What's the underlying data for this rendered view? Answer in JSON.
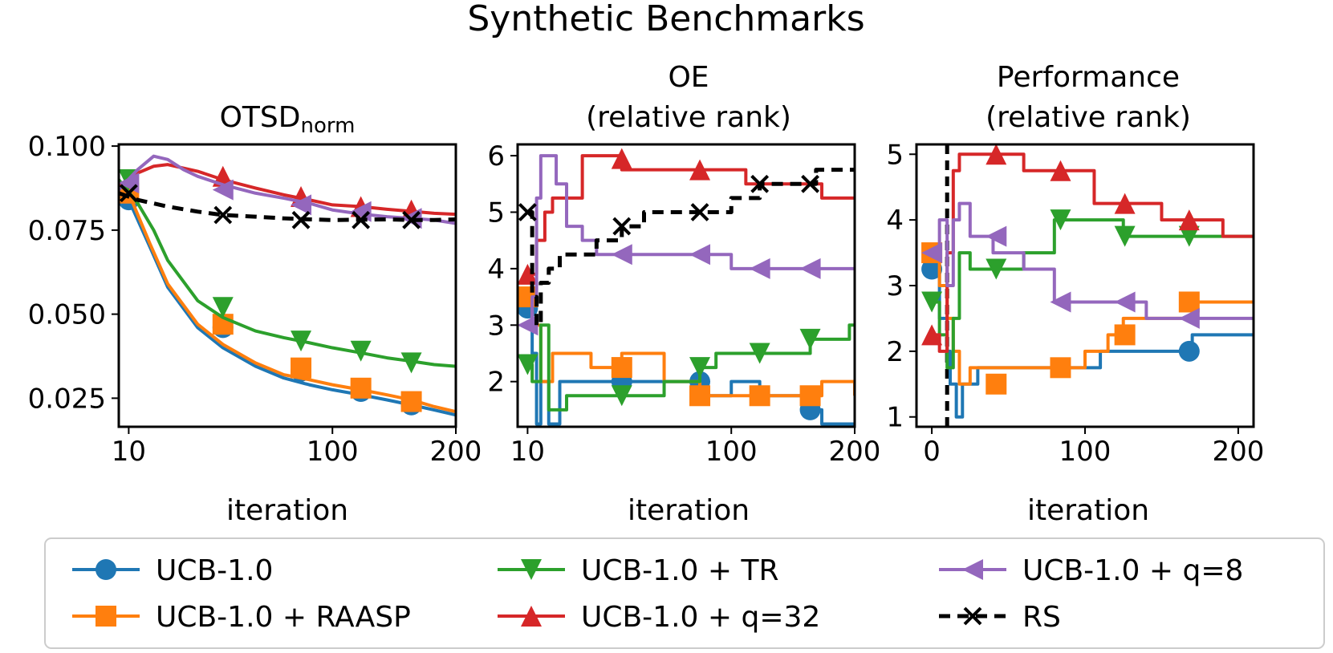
{
  "figure_title": "Synthetic Benchmarks",
  "colors": {
    "blue": "#1f77b4",
    "orange": "#ff7f0e",
    "green": "#2ca02c",
    "red": "#d62728",
    "purple": "#9467bd",
    "black": "#000000"
  },
  "legend": [
    {
      "label": "UCB-1.0",
      "color": "#1f77b4",
      "marker": "circle",
      "dash": false
    },
    {
      "label": "UCB-1.0 + RAASP",
      "color": "#ff7f0e",
      "marker": "square",
      "dash": false
    },
    {
      "label": "UCB-1.0 + TR",
      "color": "#2ca02c",
      "marker": "triangle-down",
      "dash": false
    },
    {
      "label": "UCB-1.0 + q=32",
      "color": "#d62728",
      "marker": "triangle-up",
      "dash": false
    },
    {
      "label": "UCB-1.0 + q=8",
      "color": "#9467bd",
      "marker": "triangle-left",
      "dash": false
    },
    {
      "label": "RS",
      "color": "#000000",
      "marker": "x",
      "dash": true
    }
  ],
  "chart_data": [
    {
      "type": "line",
      "title": "OTSD",
      "title_sub": "norm",
      "xlabel": "iteration",
      "ylabel": "",
      "xscale": "sqrt",
      "xlim": [
        8,
        200
      ],
      "ylim": [
        0.0165,
        0.1005
      ],
      "xticks": [
        10,
        100,
        200
      ],
      "xtick_labels": [
        "10",
        "100",
        "200"
      ],
      "yticks": [
        0.025,
        0.05,
        0.075,
        0.1
      ],
      "ytick_labels": [
        "0.025",
        "0.050",
        "0.075",
        "0.100"
      ],
      "step": false,
      "series": [
        {
          "name": "UCB-1.0",
          "color": "#1f77b4",
          "marker": "circle",
          "x": [
            10,
            15,
            20,
            30,
            40,
            55,
            70,
            85,
            100,
            120,
            140,
            160,
            180,
            200
          ],
          "y": [
            0.084,
            0.07,
            0.058,
            0.046,
            0.04,
            0.0345,
            0.031,
            0.029,
            0.0275,
            0.026,
            0.0245,
            0.023,
            0.0215,
            0.02
          ],
          "markers_x": [
            10,
            40,
            80,
            120,
            160
          ],
          "markers_y": [
            0.084,
            0.046,
            0.033,
            0.027,
            0.023
          ]
        },
        {
          "name": "UCB-1.0 + RAASP",
          "color": "#ff7f0e",
          "marker": "square",
          "x": [
            10,
            15,
            20,
            30,
            40,
            55,
            70,
            85,
            100,
            120,
            140,
            160,
            180,
            200
          ],
          "y": [
            0.086,
            0.071,
            0.059,
            0.047,
            0.041,
            0.0355,
            0.032,
            0.0305,
            0.029,
            0.0275,
            0.026,
            0.0245,
            0.0225,
            0.021
          ],
          "markers_x": [
            10,
            40,
            80,
            120,
            160
          ],
          "markers_y": [
            0.086,
            0.047,
            0.034,
            0.028,
            0.024
          ]
        },
        {
          "name": "UCB-1.0 + TR",
          "color": "#2ca02c",
          "marker": "triangle-down",
          "x": [
            8,
            12,
            16,
            20,
            30,
            40,
            55,
            70,
            85,
            100,
            120,
            140,
            160,
            180,
            200
          ],
          "y": [
            0.09,
            0.083,
            0.075,
            0.066,
            0.054,
            0.049,
            0.045,
            0.043,
            0.0415,
            0.04,
            0.0385,
            0.037,
            0.036,
            0.035,
            0.0345
          ],
          "markers_x": [
            10,
            40,
            80,
            120,
            160
          ],
          "markers_y": [
            0.09,
            0.052,
            0.042,
            0.039,
            0.0355
          ]
        },
        {
          "name": "UCB-1.0 + q=32",
          "color": "#d62728",
          "marker": "triangle-up",
          "x": [
            8,
            12,
            16,
            20,
            30,
            40,
            55,
            70,
            85,
            100,
            120,
            140,
            160,
            180,
            200
          ],
          "y": [
            0.088,
            0.092,
            0.094,
            0.0945,
            0.0925,
            0.09,
            0.0875,
            0.0855,
            0.084,
            0.0825,
            0.082,
            0.0812,
            0.0806,
            0.08,
            0.0797
          ],
          "markers_x": [
            40,
            80,
            120,
            160
          ],
          "markers_y": [
            0.091,
            0.085,
            0.082,
            0.081
          ]
        },
        {
          "name": "UCB-1.0 + q=8",
          "color": "#9467bd",
          "marker": "triangle-left",
          "x": [
            8,
            12,
            16,
            20,
            25,
            30,
            40,
            55,
            70,
            85,
            100,
            120,
            140,
            160,
            180,
            200
          ],
          "y": [
            0.087,
            0.093,
            0.097,
            0.096,
            0.093,
            0.091,
            0.0885,
            0.086,
            0.0845,
            0.083,
            0.081,
            0.0798,
            0.079,
            0.0785,
            0.078,
            0.077
          ],
          "markers_x": [
            10,
            40,
            80,
            120,
            160
          ],
          "markers_y": [
            0.089,
            0.087,
            0.0825,
            0.0805,
            0.0785
          ]
        },
        {
          "name": "RS",
          "color": "#000000",
          "marker": "x",
          "dash": true,
          "x": [
            8,
            12,
            20,
            30,
            40,
            55,
            70,
            85,
            100,
            120,
            140,
            160,
            180,
            200
          ],
          "y": [
            0.086,
            0.084,
            0.082,
            0.0805,
            0.0795,
            0.079,
            0.0785,
            0.0782,
            0.078,
            0.0781,
            0.0782,
            0.078,
            0.078,
            0.0782
          ],
          "markers_x": [
            10,
            40,
            80,
            120,
            160
          ],
          "markers_y": [
            0.086,
            0.0795,
            0.078,
            0.078,
            0.078
          ]
        }
      ]
    },
    {
      "type": "line",
      "title": "OE",
      "title_line2": "(relative rank)",
      "xlabel": "iteration",
      "ylabel": "",
      "xscale": "sqrt",
      "xlim": [
        8,
        200
      ],
      "ylim": [
        1.2,
        6.2
      ],
      "xticks": [
        10,
        100,
        200
      ],
      "xtick_labels": [
        "10",
        "100",
        "200"
      ],
      "yticks": [
        2,
        3,
        4,
        5,
        6
      ],
      "ytick_labels": [
        "2",
        "3",
        "4",
        "5",
        "6"
      ],
      "step": true,
      "series": [
        {
          "name": "UCB-1.0",
          "color": "#1f77b4",
          "marker": "circle",
          "x": [
            10,
            11,
            12,
            13,
            15,
            18,
            22,
            30,
            40,
            60,
            80,
            100,
            120,
            160,
            170,
            200
          ],
          "y": [
            3.3,
            2.5,
            1.25,
            2.0,
            1.25,
            2.0,
            2.0,
            2.0,
            2.0,
            2.0,
            1.75,
            2.0,
            1.75,
            1.5,
            1.25,
            1.25
          ],
          "markers_x": [
            10,
            40,
            80,
            160
          ],
          "markers_y": [
            3.3,
            2.0,
            2.0,
            1.5
          ]
        },
        {
          "name": "UCB-1.0 + RAASP",
          "color": "#ff7f0e",
          "marker": "square",
          "x": [
            10,
            11,
            13,
            16,
            20,
            28,
            40,
            60,
            80,
            100,
            120,
            160,
            170,
            200
          ],
          "y": [
            3.5,
            3.0,
            2.0,
            2.5,
            2.5,
            2.25,
            2.5,
            2.0,
            1.75,
            1.75,
            1.75,
            1.75,
            2.0,
            1.75
          ],
          "markers_x": [
            10,
            40,
            80,
            120,
            160
          ],
          "markers_y": [
            3.5,
            2.25,
            1.75,
            1.75,
            1.75
          ]
        },
        {
          "name": "UCB-1.0 + TR",
          "color": "#2ca02c",
          "marker": "triangle-down",
          "x": [
            10,
            11,
            13,
            15,
            20,
            28,
            40,
            60,
            80,
            90,
            110,
            120,
            160,
            195,
            200
          ],
          "y": [
            2.3,
            2.0,
            3.0,
            1.5,
            1.75,
            1.75,
            1.75,
            2.0,
            2.25,
            2.5,
            2.5,
            2.5,
            2.75,
            3.0,
            3.0
          ],
          "markers_x": [
            10,
            40,
            80,
            120,
            160
          ],
          "markers_y": [
            2.3,
            1.75,
            2.25,
            2.5,
            2.75
          ]
        },
        {
          "name": "UCB-1.0 + q=32",
          "color": "#d62728",
          "marker": "triangle-up",
          "x": [
            10,
            12,
            14,
            16,
            18,
            20,
            25,
            40,
            80,
            110,
            120,
            160,
            170,
            200
          ],
          "y": [
            3.9,
            4.5,
            5.0,
            5.25,
            5.25,
            5.25,
            6.0,
            5.75,
            5.75,
            5.5,
            5.5,
            5.5,
            5.25,
            5.25
          ],
          "markers_x": [
            10,
            40,
            80
          ],
          "markers_y": [
            3.9,
            5.95,
            5.75
          ]
        },
        {
          "name": "UCB-1.0 + q=8",
          "color": "#9467bd",
          "marker": "triangle-left",
          "x": [
            10,
            11,
            12,
            13,
            15,
            17,
            20,
            25,
            30,
            40,
            60,
            80,
            100,
            200
          ],
          "y": [
            3.0,
            3.5,
            5.25,
            6.0,
            6.0,
            5.5,
            4.75,
            4.5,
            4.25,
            4.25,
            4.25,
            4.25,
            4.0,
            4.0
          ],
          "markers_x": [
            10,
            40,
            80,
            120,
            160
          ],
          "markers_y": [
            3.0,
            4.25,
            4.25,
            4.0,
            4.0
          ]
        },
        {
          "name": "RS",
          "color": "#000000",
          "marker": "x",
          "dash": true,
          "x": [
            10,
            11,
            12,
            13,
            15,
            18,
            22,
            30,
            40,
            50,
            60,
            80,
            100,
            120,
            160,
            165,
            200
          ],
          "y": [
            5.0,
            3.5,
            3.0,
            3.75,
            4.0,
            4.25,
            4.25,
            4.5,
            4.75,
            5.0,
            5.0,
            5.0,
            5.25,
            5.5,
            5.5,
            5.75,
            5.75
          ],
          "markers_x": [
            10,
            40,
            80,
            120,
            160
          ],
          "markers_y": [
            5.0,
            4.75,
            5.0,
            5.5,
            5.5
          ]
        }
      ]
    },
    {
      "type": "line",
      "title": "Performance",
      "title_line2": "(relative rank)",
      "xlabel": "iteration",
      "ylabel": "",
      "xscale": "linear",
      "xlim": [
        -10,
        210
      ],
      "ylim": [
        0.85,
        5.15
      ],
      "xticks": [
        0,
        100,
        200
      ],
      "xtick_labels": [
        "0",
        "100",
        "200"
      ],
      "yticks": [
        1,
        2,
        3,
        4,
        5
      ],
      "ytick_labels": [
        "1",
        "2",
        "3",
        "4",
        "5"
      ],
      "vline_x": 10,
      "step": true,
      "series": [
        {
          "name": "UCB-1.0",
          "color": "#1f77b4",
          "marker": "circle",
          "x": [
            0,
            5,
            10,
            12,
            16,
            20,
            30,
            40,
            60,
            80,
            100,
            110,
            130,
            170,
            200,
            210
          ],
          "y": [
            3.25,
            2.5,
            2.0,
            1.5,
            1.0,
            1.5,
            1.75,
            1.75,
            1.75,
            1.75,
            1.75,
            2.0,
            2.0,
            2.25,
            2.25,
            2.25
          ],
          "markers_x": [
            0,
            168
          ],
          "markers_y": [
            3.25,
            2.0
          ]
        },
        {
          "name": "UCB-1.0 + RAASP",
          "color": "#ff7f0e",
          "marker": "square",
          "x": [
            0,
            5,
            10,
            14,
            18,
            25,
            40,
            60,
            80,
            100,
            115,
            125,
            130,
            170,
            200,
            210
          ],
          "y": [
            3.5,
            3.0,
            2.5,
            2.0,
            1.5,
            1.75,
            1.75,
            1.75,
            1.75,
            2.0,
            2.25,
            2.5,
            2.5,
            2.75,
            2.75,
            2.75
          ],
          "markers_x": [
            0,
            42,
            84,
            126,
            168
          ],
          "markers_y": [
            3.5,
            1.5,
            1.75,
            2.25,
            2.75
          ]
        },
        {
          "name": "UCB-1.0 + TR",
          "color": "#2ca02c",
          "marker": "triangle-down",
          "x": [
            0,
            5,
            10,
            14,
            18,
            25,
            40,
            60,
            80,
            100,
            115,
            125,
            170,
            200,
            210
          ],
          "y": [
            2.75,
            2.25,
            1.75,
            2.5,
            3.5,
            3.25,
            3.25,
            3.5,
            4.0,
            4.0,
            4.0,
            3.75,
            3.75,
            3.75,
            3.75
          ],
          "markers_x": [
            0,
            42,
            84,
            126,
            168
          ],
          "markers_y": [
            2.75,
            3.25,
            4.0,
            3.75,
            3.75
          ]
        },
        {
          "name": "UCB-1.0 + q=32",
          "color": "#d62728",
          "marker": "triangle-up",
          "x": [
            0,
            5,
            10,
            14,
            18,
            25,
            40,
            60,
            80,
            100,
            106,
            120,
            150,
            170,
            190,
            200,
            210
          ],
          "y": [
            2.25,
            2.0,
            3.5,
            4.75,
            5.0,
            5.0,
            5.0,
            4.75,
            4.75,
            4.75,
            4.25,
            4.25,
            4.0,
            4.0,
            3.75,
            3.75,
            3.75
          ],
          "markers_x": [
            0,
            42,
            84,
            126,
            168
          ],
          "markers_y": [
            2.25,
            5.0,
            4.75,
            4.25,
            4.0
          ]
        },
        {
          "name": "UCB-1.0 + q=8",
          "color": "#9467bd",
          "marker": "triangle-left",
          "x": [
            0,
            5,
            10,
            14,
            18,
            25,
            40,
            60,
            80,
            100,
            125,
            140,
            170,
            200,
            210
          ],
          "y": [
            3.5,
            4.0,
            3.0,
            4.0,
            4.25,
            3.75,
            3.5,
            3.25,
            2.75,
            2.75,
            2.75,
            2.5,
            2.5,
            2.5,
            2.5
          ],
          "markers_x": [
            0,
            42,
            84,
            126,
            168
          ],
          "markers_y": [
            3.5,
            3.75,
            2.75,
            2.75,
            2.5
          ]
        }
      ]
    }
  ]
}
